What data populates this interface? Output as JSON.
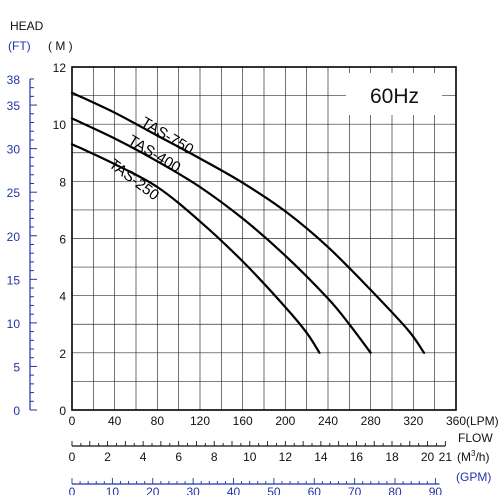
{
  "header": {
    "head_label": "HEAD",
    "ft_unit": "(FT)",
    "m_unit": "( M )",
    "frequency": "60Hz",
    "flow_label": "FLOW",
    "lpm_unit": "(LPM)",
    "m3h_unit": "(M³/h)",
    "gpm_unit": "(GPM)"
  },
  "colors": {
    "primary_axis": "#111111",
    "secondary_axes": "#2233aa",
    "curves": "#000000"
  },
  "chart_data": {
    "type": "line",
    "title": "60Hz",
    "xlabel": "FLOW (LPM)",
    "ylabel": "HEAD ( M )",
    "xlim": [
      0,
      360
    ],
    "ylim": [
      0,
      12
    ],
    "grid": true,
    "x_ticks": [
      0,
      40,
      80,
      120,
      160,
      200,
      240,
      280,
      320,
      360
    ],
    "y_ticks": [
      0,
      2,
      4,
      6,
      8,
      10,
      12
    ],
    "ft_ticks": [
      0,
      5,
      10,
      15,
      20,
      25,
      30,
      35,
      38
    ],
    "m3h_ticks": [
      0,
      2,
      4,
      6,
      8,
      10,
      12,
      14,
      16,
      18,
      20,
      21
    ],
    "gpm_ticks": [
      0,
      10,
      20,
      30,
      40,
      50,
      60,
      70,
      80,
      90
    ],
    "series": [
      {
        "name": "TAS-750",
        "x": [
          0,
          40,
          80,
          120,
          160,
          200,
          240,
          280,
          315,
          330
        ],
        "y": [
          11.1,
          10.4,
          9.6,
          8.8,
          7.95,
          6.95,
          5.7,
          4.2,
          2.8,
          2.0
        ]
      },
      {
        "name": "TAS-400",
        "x": [
          0,
          40,
          80,
          120,
          160,
          200,
          240,
          260,
          280
        ],
        "y": [
          10.2,
          9.5,
          8.7,
          7.8,
          6.7,
          5.4,
          3.9,
          3.0,
          2.0
        ]
      },
      {
        "name": "TAS-250",
        "x": [
          0,
          40,
          80,
          120,
          160,
          200,
          220,
          232
        ],
        "y": [
          9.3,
          8.6,
          7.8,
          6.6,
          5.2,
          3.6,
          2.7,
          2.0
        ]
      }
    ]
  }
}
